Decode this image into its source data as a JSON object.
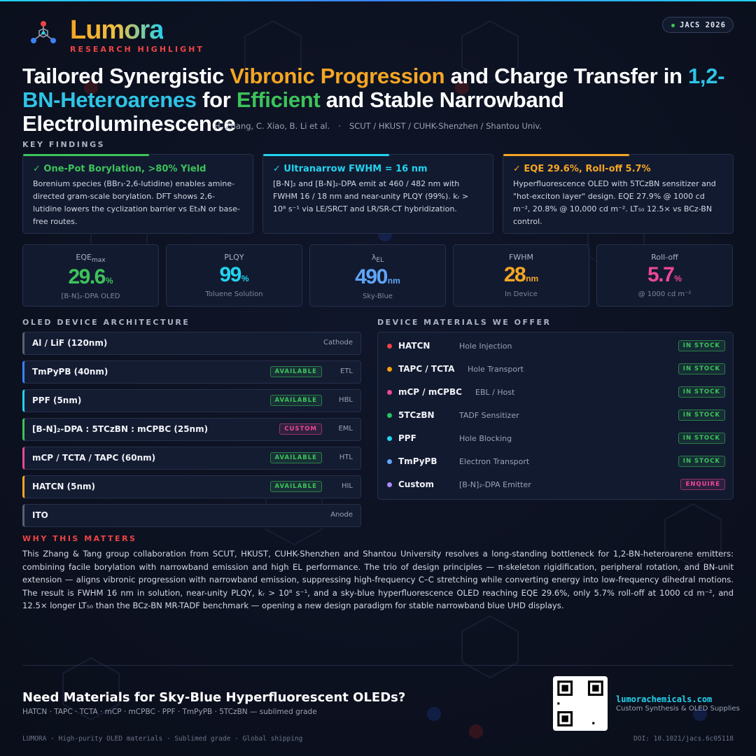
{
  "header": {
    "brand": "Lumora",
    "tagline": "RESEARCH HIGHLIGHT",
    "badge": "JACS 2026"
  },
  "title": {
    "segments": [
      {
        "text": "Tailored Synergistic ",
        "color": "#ffffff"
      },
      {
        "text": "Vibronic Progression",
        "color": "#f5a623"
      },
      {
        "text": " and Charge Transfer in ",
        "color": "#ffffff"
      },
      {
        "text": "1,2-BN-Heteroarenes",
        "color": "#2ec4e6"
      },
      {
        "text": " for ",
        "color": "#ffffff"
      },
      {
        "text": "Efficient",
        "color": "#3cc35a"
      },
      {
        "text": " and Stable Narrowband Electroluminescence",
        "color": "#ffffff"
      }
    ]
  },
  "byline": {
    "authors": "H. Zhang, C. Xiao, B. Li et al.",
    "separator": "·",
    "affiliations": "SCUT / HKUST / CUHK-Shenzhen / Shantou Univ."
  },
  "key_findings": {
    "heading": "KEY FINDINGS",
    "cards": [
      {
        "title": "✓ One-Pot Borylation, >80% Yield",
        "color": "#3cc35a",
        "body": "Borenium species (BBr₃·2,6-lutidine) enables amine-directed gram-scale borylation. DFT shows 2,6-lutidine lowers the cyclization barrier vs Et₃N or base-free routes."
      },
      {
        "title": "✓ Ultranarrow FWHM = 16 nm",
        "color": "#22d3ee",
        "body": "[B-N]₂ and [B-N]₂-DPA emit at 460 / 482 nm with FWHM 16 / 18 nm and near-unity PLQY (99%). kᵣ > 10⁸ s⁻¹ via LE/SRCT and LR/SR-CT hybridization."
      },
      {
        "title": "✓ EQE 29.6%, Roll-off 5.7%",
        "color": "#f5a623",
        "body": "Hyperfluorescence OLED with 5TCzBN sensitizer and \"hot-exciton layer\" design. EQE 27.9% @ 1000 cd m⁻², 20.8% @ 10,000 cd m⁻². LT₅₀ 12.5× vs BCz-BN control."
      }
    ]
  },
  "metrics": [
    {
      "label": "EQE",
      "label_sub": "max",
      "value": "29.6",
      "unit": "%",
      "note": "[B-N]₂-DPA OLED",
      "color": "#3cc35a"
    },
    {
      "label": "PLQY",
      "value": "99",
      "unit": "%",
      "note": "Toluene Solution",
      "color": "#22d3ee"
    },
    {
      "label": "λ",
      "label_sub": "EL",
      "value": "490",
      "unit": "nm",
      "note": "Sky-Blue",
      "color": "#60a5fa"
    },
    {
      "label": "FWHM",
      "value": "28",
      "unit": "nm",
      "note": "In Device",
      "color": "#f5a623"
    },
    {
      "label": "Roll-off",
      "value": "5.7",
      "unit": "%",
      "note": "@ 1000 cd m⁻²",
      "color": "#ec4899"
    }
  ],
  "architecture": {
    "heading": "OLED DEVICE ARCHITECTURE",
    "layers": [
      {
        "name": "Al / LiF (120nm)",
        "role": "Cathode",
        "color": "#596075"
      },
      {
        "name": "TmPyPB (40nm)",
        "status": "AVAILABLE",
        "status_color": "#3cc35a",
        "role": "ETL",
        "color": "#3b82f6"
      },
      {
        "name": "PPF (5nm)",
        "status": "AVAILABLE",
        "status_color": "#3cc35a",
        "role": "HBL",
        "color": "#22d3ee"
      },
      {
        "name": "[B-N]₂-DPA : 5TCzBN : mCPBC (25nm)",
        "status": "CUSTOM",
        "status_color": "#ec4899",
        "role": "EML",
        "color": "#3cc35a"
      },
      {
        "name": "mCP / TCTA / TAPC (60nm)",
        "status": "AVAILABLE",
        "status_color": "#3cc35a",
        "role": "HTL",
        "color": "#ec4899"
      },
      {
        "name": "HATCN (5nm)",
        "status": "AVAILABLE",
        "status_color": "#3cc35a",
        "role": "HIL",
        "color": "#f5a623"
      },
      {
        "name": "ITO",
        "role": "Anode",
        "color": "#596075"
      }
    ]
  },
  "materials": {
    "heading": "DEVICE MATERIALS WE OFFER",
    "items": [
      {
        "name": "HATCN",
        "use": "Hole Injection",
        "status": "IN STOCK",
        "status_color": "#3cc35a",
        "color": "#ef4444"
      },
      {
        "name": "TAPC / TCTA",
        "use": "Hole Transport",
        "status": "IN STOCK",
        "status_color": "#3cc35a",
        "color": "#f59e0b"
      },
      {
        "name": "mCP / mCPBC",
        "use": "EBL / Host",
        "status": "IN STOCK",
        "status_color": "#3cc35a",
        "color": "#ec4899"
      },
      {
        "name": "5TCzBN",
        "use": "TADF Sensitizer",
        "status": "IN STOCK",
        "status_color": "#3cc35a",
        "color": "#22c55e"
      },
      {
        "name": "PPF",
        "use": "Hole Blocking",
        "status": "IN STOCK",
        "status_color": "#3cc35a",
        "color": "#22d3ee"
      },
      {
        "name": "TmPyPB",
        "use": "Electron Transport",
        "status": "IN STOCK",
        "status_color": "#3cc35a",
        "color": "#60a5fa"
      },
      {
        "name": "Custom",
        "use": "[B-N]₂-DPA Emitter",
        "status": "ENQUIRE",
        "status_color": "#ec4899",
        "color": "#a78bfa"
      }
    ]
  },
  "why": {
    "heading": "WHY THIS MATTERS",
    "body": "This Zhang & Tang group collaboration from SCUT, HKUST, CUHK-Shenzhen and Shantou University resolves a long-standing bottleneck for 1,2-BN-heteroarene emitters: combining facile borylation with narrowband emission and high EL performance. The trio of design principles — π-skeleton rigidification, peripheral rotation, and BN-unit extension — aligns vibronic progression with narrowband emission, suppressing high-frequency C–C stretching while converting energy into low-frequency dihedral motions. The result is FWHM 16 nm in solution, near-unity PLQY, kᵣ > 10⁸ s⁻¹, and a sky-blue hyperfluorescence OLED reaching EQE 29.6%, only 5.7% roll-off at 1000 cd m⁻², and 12.5× longer LT₅₀ than the BCz-BN MR-TADF benchmark — opening a new design paradigm for stable narrowband blue UHD displays."
  },
  "cta": {
    "title": "Need Materials for Sky-Blue Hyperfluorescent OLEDs?",
    "subtitle": "HATCN · TAPC · TCTA · mCP · mCPBC · PPF · TmPyPB · 5TCzBN — sublimed grade",
    "url": "lumorachemicals.com",
    "tagline": "Custom Synthesis & OLED Supplies"
  },
  "footer": {
    "left": "LUMORA · High-purity OLED materials · Sublimed grade · Global shipping",
    "doi": "DOI: 10.1021/jacs.6c05118"
  }
}
